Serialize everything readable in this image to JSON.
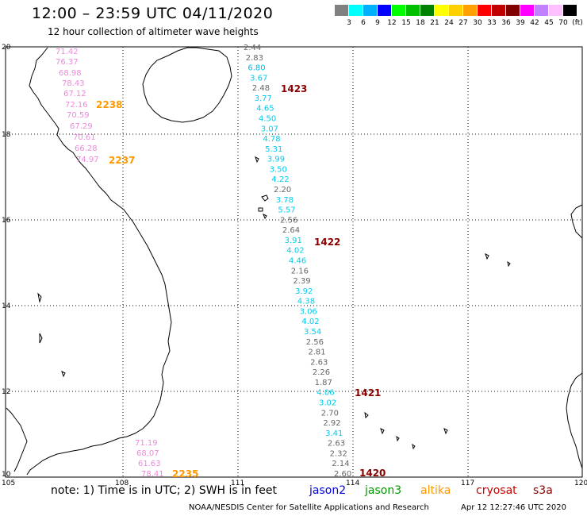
{
  "title": "12:00 – 23:59 UTC 04/11/2020",
  "subtitle": "12 hour collection of altimeter wave heights",
  "color_scale": {
    "colors": [
      "#808080",
      "#00ffff",
      "#00b0ff",
      "#0000ff",
      "#00ff00",
      "#00c000",
      "#008000",
      "#ffff00",
      "#ffd000",
      "#ffa000",
      "#ff0000",
      "#c00000",
      "#800000",
      "#ff00ff",
      "#c080ff",
      "#ffc0ff",
      "#000000"
    ],
    "labels": [
      "3",
      "6",
      "9",
      "12",
      "15",
      "18",
      "21",
      "24",
      "27",
      "30",
      "33",
      "36",
      "39",
      "42",
      "45",
      "70",
      "(ft)"
    ]
  },
  "axes": {
    "lon_ticks": [
      "105",
      "108",
      "111",
      "114",
      "117",
      "120"
    ],
    "lat_ticks": [
      "20",
      "18",
      "16",
      "14",
      "12",
      "10"
    ]
  },
  "note": {
    "text": "note: 1) Time is in UTC; 2) SWH is in feet",
    "jason2": "jason2",
    "jason3": "jason3",
    "altika": "altika",
    "cryosat": "cryosat",
    "s3a": "s3a"
  },
  "footer": "NOAA/NESDIS Center for Satellite Applications and Research",
  "footer_time": "Apr 12 12:27:46 UTC 2020",
  "tracks": [
    {
      "color": "#ee88dd",
      "values": [
        "71.42",
        "76.37",
        "68.98",
        "78.43",
        "67.12",
        "72.16",
        "70.59",
        "67.29",
        "70.61",
        "66.28",
        "74.97"
      ]
    },
    {
      "color": "#ee88dd",
      "values": [
        "71.19",
        "68.07",
        "61.63",
        "78.41"
      ]
    }
  ],
  "track_time_labels": [
    {
      "text": "2238",
      "color": "#ff9900"
    },
    {
      "text": "2237",
      "color": "#ff9900"
    },
    {
      "text": "2235",
      "color": "#ff9900"
    },
    {
      "text": "1423",
      "color": "#880000"
    },
    {
      "text": "1422",
      "color": "#880000"
    },
    {
      "text": "1421",
      "color": "#880000"
    },
    {
      "text": "1420",
      "color": "#880000"
    }
  ],
  "s3a_values": [
    {
      "v": "2.44",
      "c": "#666666"
    },
    {
      "v": "2.83",
      "c": "#666666"
    },
    {
      "v": "6.80",
      "c": "#00bbee"
    },
    {
      "v": "3.67",
      "c": "#00ccee"
    },
    {
      "v": "2.48",
      "c": "#666666"
    },
    {
      "v": "3.77",
      "c": "#00ccee"
    },
    {
      "v": "4.65",
      "c": "#00ccee"
    },
    {
      "v": "4.50",
      "c": "#00ccee"
    },
    {
      "v": "3.07",
      "c": "#00ccee"
    },
    {
      "v": "4.78",
      "c": "#00ccee"
    },
    {
      "v": "5.31",
      "c": "#00ccee"
    },
    {
      "v": "3.99",
      "c": "#00ccee"
    },
    {
      "v": "3.50",
      "c": "#00ccee"
    },
    {
      "v": "4.22",
      "c": "#00ccee"
    },
    {
      "v": "2.20",
      "c": "#666666"
    },
    {
      "v": "3.78",
      "c": "#00ccee"
    },
    {
      "v": "5.57",
      "c": "#00ccee"
    },
    {
      "v": "2.56",
      "c": "#666666"
    },
    {
      "v": "2.64",
      "c": "#666666"
    },
    {
      "v": "3.91",
      "c": "#00ccee"
    },
    {
      "v": "4.02",
      "c": "#00ccee"
    },
    {
      "v": "4.46",
      "c": "#00ccee"
    },
    {
      "v": "2.16",
      "c": "#666666"
    },
    {
      "v": "2.39",
      "c": "#666666"
    },
    {
      "v": "3.92",
      "c": "#00ccee"
    },
    {
      "v": "4.38",
      "c": "#00ccee"
    },
    {
      "v": "3.06",
      "c": "#00ccee"
    },
    {
      "v": "4.02",
      "c": "#00ccee"
    },
    {
      "v": "3.54",
      "c": "#00ccee"
    },
    {
      "v": "2.56",
      "c": "#666666"
    },
    {
      "v": "2.81",
      "c": "#666666"
    },
    {
      "v": "2.63",
      "c": "#666666"
    },
    {
      "v": "2.26",
      "c": "#666666"
    },
    {
      "v": "1.87",
      "c": "#666666"
    },
    {
      "v": "4.06",
      "c": "#00ccee"
    },
    {
      "v": "3.02",
      "c": "#00ccee"
    },
    {
      "v": "2.70",
      "c": "#666666"
    },
    {
      "v": "2.92",
      "c": "#666666"
    },
    {
      "v": "3.41",
      "c": "#00ccee"
    },
    {
      "v": "2.63",
      "c": "#666666"
    },
    {
      "v": "2.32",
      "c": "#666666"
    },
    {
      "v": "2.14",
      "c": "#666666"
    },
    {
      "v": "2.60",
      "c": "#666666"
    }
  ]
}
